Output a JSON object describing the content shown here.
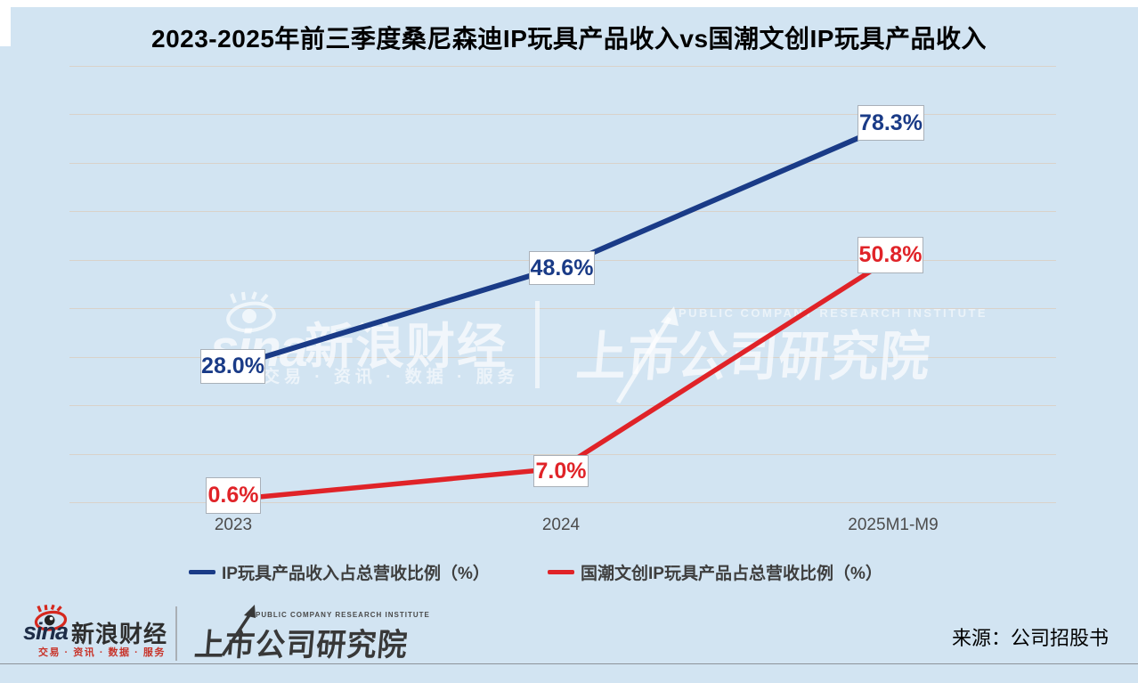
{
  "title": "2023-2025年前三季度桑尼森迪IP玩具产品收入vs国潮文创IP玩具产品收入",
  "chart_data": {
    "type": "line",
    "categories": [
      "2023",
      "2024",
      "2025M1-M9"
    ],
    "series": [
      {
        "name": "IP玩具产品收入占总营收比例（%）",
        "values": [
          28.0,
          48.6,
          78.3
        ],
        "labels": [
          "28.0%",
          "48.6%",
          "78.3%"
        ],
        "color": "#1a3b87"
      },
      {
        "name": "国潮文创IP玩具产品占总营收比例（%）",
        "values": [
          0.6,
          7.0,
          50.8
        ],
        "labels": [
          "0.6%",
          "7.0%",
          "50.8%"
        ],
        "color": "#e02328"
      }
    ],
    "ylim": [
      0,
      90
    ],
    "grid": true,
    "legend_position": "bottom",
    "data_label_boxes": true
  },
  "watermark": {
    "sina_word": "sina",
    "sina_brand": "新浪财经",
    "sina_tagline": "交易 · 资讯 · 数据 · 服务",
    "pcri_en": "PUBLIC COMPANY RESEARCH INSTITUTE",
    "pcri_cn": "上市公司研究院"
  },
  "footer": {
    "sina_word": "sina",
    "sina_brand": "新浪财经",
    "sina_tagline": "交易 · 资讯 · 数据 · 服务",
    "pcri_en": "PUBLIC COMPANY RESEARCH INSTITUTE",
    "pcri_cn": "上市公司研究院",
    "source": "来源：公司招股书"
  },
  "colors": {
    "background": "#d2e4f2",
    "blue": "#1a3b87",
    "red": "#e02328",
    "grid": "#d9d2ca",
    "sina_red": "#d5281e",
    "logo_dark": "#383838"
  }
}
